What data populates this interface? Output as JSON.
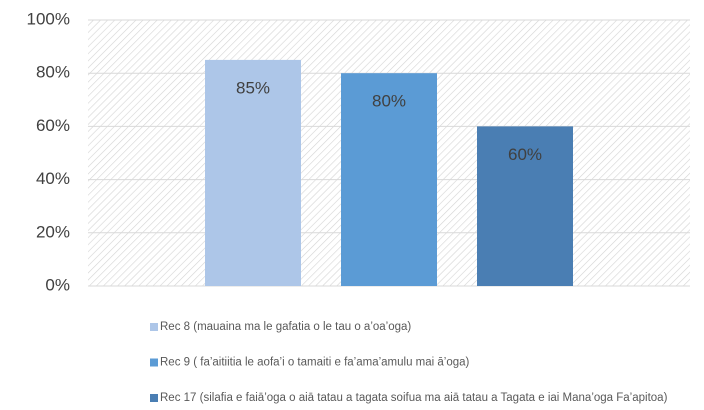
{
  "chart_data": {
    "type": "bar",
    "categories": [
      null
    ],
    "series": [
      {
        "name": "Rec 8 (mauaina ma le gafatia o le tau o a’oa’oga)",
        "color": "#adc6e8",
        "values": [
          85
        ],
        "value_labels": [
          "85%"
        ]
      },
      {
        "name": "Rec 9 ( fa’aitiitia le aofa’i o tamaiti e fa’ama’amulu mai ā’oga)",
        "color": "#5b9bd5",
        "values": [
          80
        ],
        "value_labels": [
          "80%"
        ]
      },
      {
        "name": "Rec 17 (silafia e faiā’oga o aiā tatau a tagata soifua ma aiā tatau a Tagata e iai Mana’oga Fa’apitoa)",
        "color": "#4a7eb3",
        "values": [
          60
        ],
        "value_labels": [
          "60%"
        ]
      }
    ],
    "ylim": [
      0,
      100
    ],
    "yticks": [
      {
        "value": 0,
        "label": "0%"
      },
      {
        "value": 20,
        "label": "20%"
      },
      {
        "value": 40,
        "label": "40%"
      },
      {
        "value": 60,
        "label": "60%"
      },
      {
        "value": 80,
        "label": "80%"
      },
      {
        "value": 100,
        "label": "100%"
      }
    ],
    "grid": true,
    "legend": "bottom"
  }
}
